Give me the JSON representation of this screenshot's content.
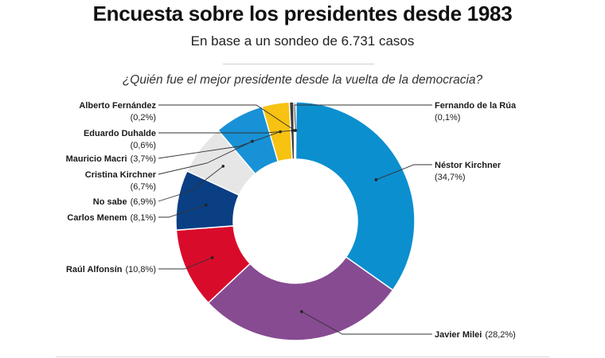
{
  "header": {
    "title": "Encuesta sobre los presidentes desde 1983",
    "subtitle": "En base a un sondeo de 6.731 casos",
    "question": "¿Quién fue el mejor presidente desde la vuelta de la democracia?"
  },
  "chart_data": {
    "type": "pie",
    "subtype": "donut",
    "title": "Encuesta sobre los presidentes desde 1983",
    "subtitle": "En base a un sondeo de 6.731 casos",
    "question": "¿Quién fue el mejor presidente desde la vuelta de la democracia?",
    "unit": "%",
    "slices": [
      {
        "key": "kirchner-nestor",
        "name": "Néstor Kirchner",
        "value": 34.7,
        "display": "(34,7%)",
        "color": "#0b8fcf",
        "side": "right",
        "layout": "two-line"
      },
      {
        "key": "milei",
        "name": "Javier Milei",
        "value": 28.2,
        "display": "(28,2%)",
        "color": "#874b92",
        "side": "right",
        "layout": "inline"
      },
      {
        "key": "alfonsin",
        "name": "Raúl Alfonsín",
        "value": 10.8,
        "display": "(10,8%)",
        "color": "#d90b2b",
        "side": "left",
        "layout": "inline"
      },
      {
        "key": "menem",
        "name": "Carlos Menem",
        "value": 8.1,
        "display": "(8,1%)",
        "color": "#0a3f84",
        "side": "left",
        "layout": "inline"
      },
      {
        "key": "no-sabe",
        "name": "No sabe",
        "value": 6.9,
        "display": "(6,9%)",
        "color": "#e6e6e6",
        "side": "left",
        "layout": "inline"
      },
      {
        "key": "kirchner-cristina",
        "name": "Cristina Kirchner",
        "value": 6.7,
        "display": "(6,7%)",
        "color": "#1891d6",
        "side": "left",
        "layout": "two-line"
      },
      {
        "key": "macri",
        "name": "Mauricio Macri",
        "value": 3.7,
        "display": "(3,7%)",
        "color": "#f7c211",
        "side": "left",
        "layout": "inline"
      },
      {
        "key": "duhalde",
        "name": "Eduardo Duhalde",
        "value": 0.6,
        "display": "(0,6%)",
        "color": "#3b3b3b",
        "side": "left",
        "layout": "two-line"
      },
      {
        "key": "fernandez",
        "name": "Alberto Fernández",
        "value": 0.2,
        "display": "(0,2%)",
        "color": "#1f5aa8",
        "side": "left",
        "layout": "two-line"
      },
      {
        "key": "de-la-rua",
        "name": "Fernando de la Rúa",
        "value": 0.1,
        "display": "(0,1%)",
        "color": "#2a2a2a",
        "side": "right",
        "layout": "two-line"
      }
    ]
  }
}
